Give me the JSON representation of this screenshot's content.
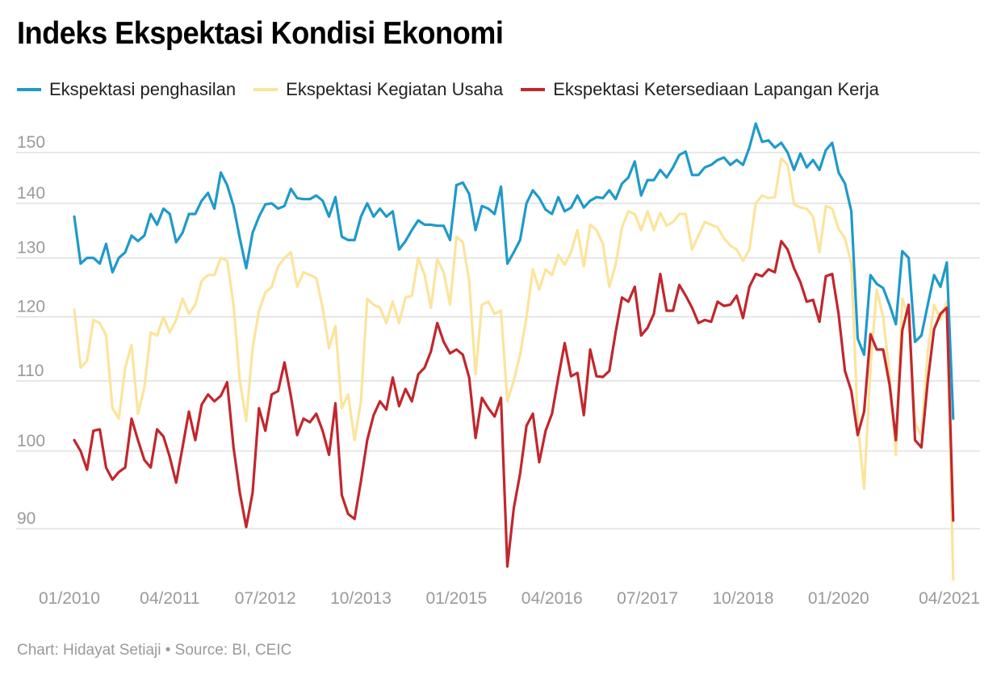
{
  "title": "Indeks Ekspektasi Kondisi Ekonomi",
  "footer": "Chart: Hidayat Setiaji • Source: BI, CEIC",
  "chart_data": {
    "type": "line",
    "title": "Indeks Ekspektasi Kondisi Ekonomi",
    "xlabel": "",
    "ylabel": "",
    "x_start": "01/2010",
    "x_end": "05/2021",
    "x_ticks": [
      "01/2010",
      "04/2011",
      "07/2012",
      "10/2013",
      "01/2015",
      "04/2016",
      "07/2017",
      "10/2018",
      "01/2020",
      "04/2021"
    ],
    "y_ticks": [
      90,
      100,
      110,
      120,
      130,
      140,
      150
    ],
    "ylim": [
      85,
      157
    ],
    "y_scale": "log",
    "grid": true,
    "legend_position": "top-left",
    "series": [
      {
        "name": "Ekspektasi penghasilan",
        "color": "#1f9ac9",
        "values": [
          137.5,
          129,
          130,
          130,
          129,
          132.5,
          127.5,
          130,
          131,
          134,
          133,
          134,
          138,
          136,
          139,
          138,
          132.8,
          134.5,
          138,
          138,
          140.5,
          142,
          139,
          146,
          143.5,
          139.5,
          133.5,
          128.2,
          134.5,
          137.5,
          139.8,
          140,
          139,
          139.5,
          142.8,
          141,
          140.8,
          140.8,
          141.5,
          140.5,
          137.5,
          141.2,
          133.8,
          133.2,
          133.2,
          137.5,
          140,
          137.5,
          139,
          137.5,
          138.5,
          131.5,
          133,
          135,
          136.8,
          136,
          136,
          135.8,
          135.8,
          133.2,
          143.5,
          144,
          141.8,
          135,
          139.5,
          139,
          138,
          143.2,
          129,
          131,
          133.2,
          140,
          142.5,
          141,
          138.8,
          138,
          141.2,
          138.5,
          139.2,
          141.5,
          139.2,
          140.5,
          141.2,
          141,
          142.5,
          140.8,
          143.8,
          145,
          148.2,
          141.5,
          144.5,
          144.5,
          146.5,
          145,
          147,
          149.5,
          150.2,
          145.5,
          145.5,
          147,
          147.5,
          148.5,
          149,
          147.5,
          148.5,
          147.5,
          151,
          156,
          152.2,
          152.5,
          151,
          152,
          150,
          146.5,
          149.8,
          147,
          148.5,
          146.5,
          150.5,
          152,
          146,
          143.8,
          138.5,
          116.5,
          114,
          127,
          125.5,
          124.8,
          122,
          118.8,
          131.2,
          130,
          116,
          117,
          122,
          127,
          125,
          129.2,
          104.5
        ]
      },
      {
        "name": "Ekspektasi Kegiatan Usaha",
        "color": "#fbe49c",
        "values": [
          121.2,
          112,
          113,
          119.5,
          119,
          117,
          106,
          104.5,
          112,
          115.5,
          105.2,
          109,
          117.5,
          117,
          120,
          117.5,
          119.5,
          123,
          120.5,
          122,
          126,
          127,
          127,
          130,
          129.5,
          122,
          110,
          104.2,
          115,
          121,
          124,
          125,
          128.5,
          130,
          131,
          125,
          127.5,
          127,
          126.5,
          121.5,
          115,
          118.5,
          106,
          108,
          101.5,
          107,
          123,
          122,
          121.5,
          119,
          122.5,
          119,
          123.2,
          123.5,
          130,
          127,
          121.5,
          129.8,
          127.5,
          122,
          133.8,
          132.8,
          126,
          111,
          122,
          122.5,
          120.5,
          121,
          107,
          110,
          114,
          120,
          128,
          124.5,
          128,
          127,
          130.5,
          128.8,
          131,
          135,
          128.5,
          136,
          135,
          132.5,
          125,
          128.8,
          135.5,
          138.5,
          138,
          135,
          138.5,
          135,
          138.2,
          135.8,
          136.5,
          138,
          138,
          131.5,
          134,
          136.5,
          136,
          135.5,
          133.5,
          132.2,
          131.5,
          129.5,
          131.5,
          140,
          141.5,
          141,
          141.2,
          148.8,
          147.5,
          139.8,
          139.2,
          139,
          137.5,
          131,
          139.5,
          139,
          135.2,
          133.5,
          129,
          104,
          95,
          112,
          124.5,
          120,
          111,
          99.5,
          123,
          120,
          104,
          102,
          114.5,
          122,
          119.5,
          122.5,
          84
        ]
      },
      {
        "name": "Ekspektasi Ketersediaan Lapangan Kerja",
        "color": "#c1272d",
        "values": [
          101.5,
          100,
          97.5,
          102.8,
          103,
          97.8,
          96.2,
          97.2,
          97.8,
          104.5,
          101.5,
          98.8,
          97.8,
          103,
          102,
          99.2,
          95.8,
          100.5,
          105.5,
          101.5,
          106.5,
          108,
          107,
          107.8,
          109.8,
          100.5,
          94.5,
          90.2,
          94.5,
          106,
          102.8,
          108,
          108.5,
          112.8,
          107.8,
          102.2,
          104.5,
          104,
          105.2,
          102.8,
          99.5,
          106.7,
          94.2,
          91.8,
          91.2,
          96,
          101.5,
          105,
          107,
          105.8,
          110.5,
          106.3,
          108.8,
          107,
          111,
          112,
          114.5,
          119,
          116,
          114.2,
          114.8,
          114,
          110.5,
          101.8,
          107.5,
          106,
          104.8,
          107.5,
          85.5,
          92.5,
          97,
          103.5,
          105.2,
          98.5,
          102.8,
          105.2,
          110.5,
          115.8,
          110.7,
          111.2,
          105,
          114.8,
          110.7,
          110.6,
          111.5,
          117.5,
          123.2,
          122.5,
          125,
          117,
          118.2,
          120.5,
          127.2,
          121,
          121,
          125.3,
          123.5,
          121.5,
          119,
          119.5,
          119.2,
          122.5,
          121.8,
          122,
          123.5,
          119.8,
          125,
          127.2,
          126.8,
          128,
          127.5,
          133,
          131.5,
          128.2,
          125.8,
          122.5,
          122.8,
          119.2,
          126.8,
          127.2,
          120.5,
          111.5,
          108.5,
          102.2,
          105.5,
          117.2,
          114.8,
          114.8,
          109.5,
          101.5,
          117.8,
          122,
          101.5,
          100.5,
          110,
          118,
          120.5,
          121.5,
          91
        ]
      }
    ]
  }
}
